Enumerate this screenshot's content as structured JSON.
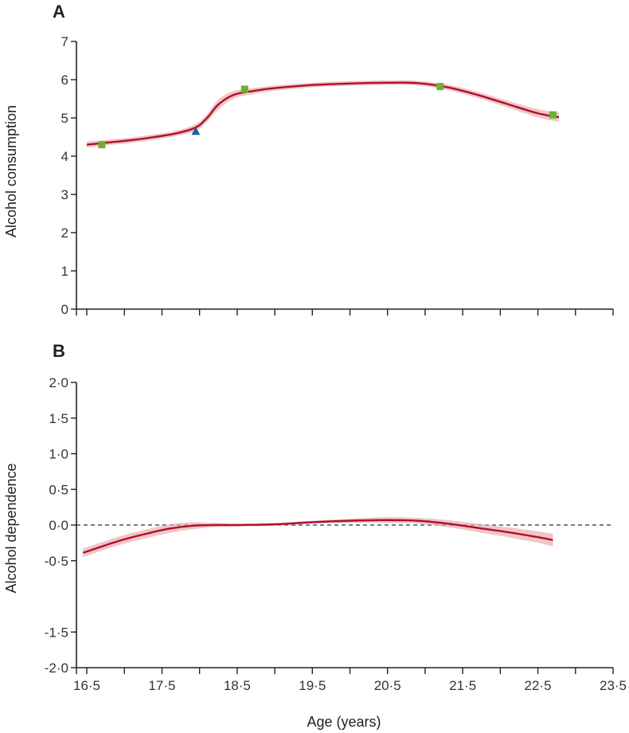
{
  "chart_data": [
    {
      "type": "line",
      "panel_label": "A",
      "xlabel": "",
      "ylabel": "Alcohol consumption",
      "xlim": [
        16.3,
        23.5
      ],
      "ylim": [
        0,
        7
      ],
      "xticks": [
        "16·5",
        "17·5",
        "18·5",
        "19·5",
        "20·5",
        "21·5",
        "22·5",
        "23·5"
      ],
      "xtick_values": [
        16.5,
        17.5,
        18.5,
        19.5,
        20.5,
        21.5,
        22.5,
        23.5
      ],
      "yticks": [
        "0",
        "1",
        "2",
        "3",
        "4",
        "5",
        "6",
        "7"
      ],
      "ytick_values": [
        0,
        1,
        2,
        3,
        4,
        5,
        6,
        7
      ],
      "series": [
        {
          "type": "line",
          "color": "#b0102a",
          "band_color": "#eaa8a8",
          "x": [
            16.5,
            16.8,
            17.1,
            17.4,
            17.7,
            17.95,
            18.1,
            18.25,
            18.45,
            18.7,
            19.0,
            19.5,
            20.0,
            20.5,
            20.9,
            21.3,
            21.7,
            22.1,
            22.5,
            22.78
          ],
          "y": [
            4.3,
            4.36,
            4.42,
            4.5,
            4.6,
            4.75,
            5.0,
            5.35,
            5.6,
            5.7,
            5.78,
            5.86,
            5.9,
            5.92,
            5.91,
            5.8,
            5.6,
            5.36,
            5.12,
            5.02
          ],
          "y_lower": [
            4.22,
            4.29,
            4.35,
            4.43,
            4.53,
            4.66,
            4.9,
            5.22,
            5.5,
            5.62,
            5.71,
            5.8,
            5.84,
            5.86,
            5.85,
            5.73,
            5.52,
            5.27,
            5.01,
            4.9
          ],
          "y_upper": [
            4.38,
            4.43,
            4.49,
            4.57,
            4.67,
            4.84,
            5.1,
            5.48,
            5.7,
            5.78,
            5.85,
            5.92,
            5.96,
            5.98,
            5.97,
            5.87,
            5.68,
            5.45,
            5.23,
            5.14
          ]
        },
        {
          "type": "scatter",
          "marker": "square",
          "color": "#6ab42d",
          "x": [
            16.7,
            18.6,
            21.2,
            22.7
          ],
          "y": [
            4.3,
            5.75,
            5.82,
            5.08
          ]
        },
        {
          "type": "scatter",
          "marker": "triangle",
          "color": "#1f5fa8",
          "x": [
            17.95
          ],
          "y": [
            4.65
          ]
        }
      ],
      "grid": false
    },
    {
      "type": "line",
      "panel_label": "B",
      "xlabel": "Age (years)",
      "ylabel": "Alcohol dependence",
      "xlim": [
        16.3,
        23.5
      ],
      "ylim": [
        -2.0,
        2.0
      ],
      "xticks": [
        "16·5",
        "17·5",
        "18·5",
        "19·5",
        "20·5",
        "21·5",
        "22·5",
        "23·5"
      ],
      "xtick_values": [
        16.5,
        17.5,
        18.5,
        19.5,
        20.5,
        21.5,
        22.5,
        23.5
      ],
      "yticks": [
        "2·0",
        "1·5",
        "1·0",
        "0·5",
        "0·0",
        "-0·5",
        "-1·5",
        "-2·0"
      ],
      "ytick_values": [
        2.0,
        1.5,
        1.0,
        0.5,
        0.0,
        -0.5,
        -1.5,
        -2.0
      ],
      "reference_line": {
        "y": 0.0,
        "style": "dashed",
        "color": "#2f5f78"
      },
      "series": [
        {
          "type": "line",
          "color": "#b0102a",
          "band_color": "#eaa8a8",
          "x": [
            16.45,
            16.7,
            17.0,
            17.3,
            17.6,
            17.9,
            18.2,
            18.5,
            19.0,
            19.5,
            20.0,
            20.5,
            20.9,
            21.3,
            21.7,
            22.1,
            22.5,
            22.7
          ],
          "y": [
            -0.39,
            -0.3,
            -0.2,
            -0.12,
            -0.05,
            -0.01,
            0.0,
            0.0,
            0.01,
            0.04,
            0.06,
            0.07,
            0.06,
            0.02,
            -0.04,
            -0.1,
            -0.17,
            -0.21
          ],
          "y_lower": [
            -0.45,
            -0.36,
            -0.26,
            -0.18,
            -0.11,
            -0.06,
            -0.03,
            -0.02,
            -0.01,
            0.02,
            0.03,
            0.03,
            0.02,
            -0.03,
            -0.1,
            -0.17,
            -0.25,
            -0.3
          ],
          "y_upper": [
            -0.33,
            -0.24,
            -0.14,
            -0.06,
            0.01,
            0.04,
            0.03,
            0.02,
            0.03,
            0.06,
            0.09,
            0.11,
            0.1,
            0.07,
            0.02,
            -0.03,
            -0.09,
            -0.12
          ]
        }
      ],
      "grid": false
    }
  ]
}
